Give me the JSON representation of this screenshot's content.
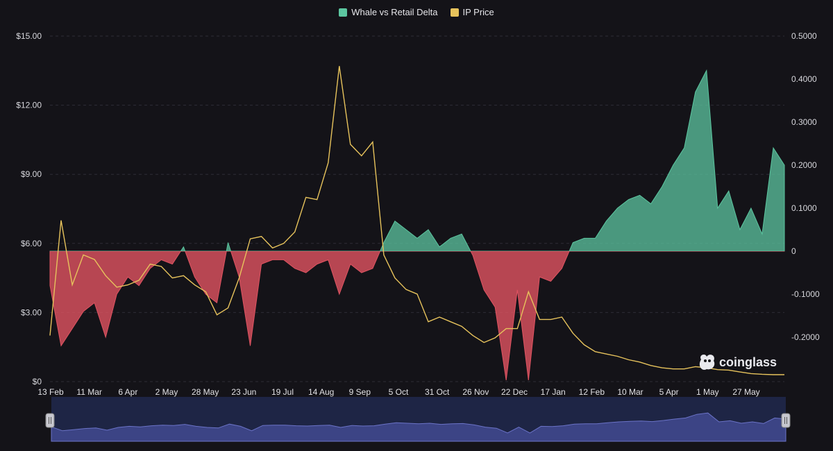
{
  "legend": {
    "delta_label": "Whale vs Retail Delta",
    "price_label": "IP Price"
  },
  "colors": {
    "positive": "#5cc6a0",
    "negative": "#e05462",
    "price": "#e7c35c",
    "background": "#141318",
    "navigator": "#6b73c7"
  },
  "watermark": "coinglass",
  "chart_data": {
    "type": "area",
    "title": "",
    "x_ticks": [
      "13 Feb",
      "11 Mar",
      "6 Apr",
      "2 May",
      "28 May",
      "23 Jun",
      "19 Jul",
      "14 Aug",
      "9 Sep",
      "5 Oct",
      "31 Oct",
      "26 Nov",
      "22 Dec",
      "17 Jan",
      "12 Feb",
      "10 Mar",
      "5 Apr",
      "1 May",
      "27 May"
    ],
    "y_left": {
      "min": 0,
      "max": 15,
      "ticks": [
        "$0",
        "$3.00",
        "$6.00",
        "$9.00",
        "$12.00",
        "$15.00"
      ]
    },
    "y_right": {
      "min": -0.3,
      "max": 0.5,
      "ticks": [
        "0.5000",
        "0.4000",
        "0.3000",
        "0.2000",
        "0.1000",
        "0",
        "-0.1000",
        "-0.2000"
      ]
    },
    "grid": true,
    "legend_position": "top-center",
    "x": [
      "13 Feb",
      "24 Feb",
      "4 Mar",
      "11 Mar",
      "20 Mar",
      "29 Mar",
      "6 Apr",
      "15 Apr",
      "24 Apr",
      "2 May",
      "11 May",
      "20 May",
      "28 May",
      "6 Jun",
      "15 Jun",
      "23 Jun",
      "2 Jul",
      "10 Jul",
      "19 Jul",
      "28 Jul",
      "5 Aug",
      "14 Aug",
      "23 Aug",
      "1 Sep",
      "9 Sep",
      "14 Sep",
      "18 Sep",
      "22 Sep",
      "27 Sep",
      "1 Oct",
      "5 Oct",
      "14 Oct",
      "22 Oct",
      "31 Oct",
      "9 Nov",
      "17 Nov",
      "26 Nov",
      "5 Dec",
      "13 Dec",
      "22 Dec",
      "26 Dec",
      "31 Dec",
      "4 Jan",
      "8 Jan",
      "12 Jan",
      "17 Jan",
      "21 Jan",
      "26 Jan",
      "3 Feb",
      "12 Feb",
      "21 Feb",
      "1 Mar",
      "10 Mar",
      "19 Mar",
      "27 Mar",
      "5 Apr",
      "14 Apr",
      "23 Apr",
      "27 Apr",
      "1 May",
      "5 May",
      "10 May",
      "19 May",
      "27 May",
      "5 Jun",
      "14 Jun",
      "20 Jun"
    ],
    "series": [
      {
        "name": "Whale vs Retail Delta",
        "axis": "right",
        "values": [
          -0.08,
          -0.22,
          -0.18,
          -0.14,
          -0.12,
          -0.2,
          -0.1,
          -0.06,
          -0.08,
          -0.04,
          -0.02,
          -0.03,
          0.01,
          -0.06,
          -0.1,
          -0.12,
          0.02,
          -0.06,
          -0.22,
          -0.03,
          -0.02,
          -0.02,
          -0.04,
          -0.05,
          -0.03,
          -0.02,
          -0.1,
          -0.03,
          -0.05,
          -0.04,
          0.02,
          0.07,
          0.05,
          0.03,
          0.05,
          0.01,
          0.03,
          0.04,
          -0.01,
          -0.09,
          -0.13,
          -0.3,
          -0.09,
          -0.3,
          -0.06,
          -0.07,
          -0.04,
          0.02,
          0.03,
          0.03,
          0.07,
          0.1,
          0.12,
          0.13,
          0.11,
          0.15,
          0.2,
          0.24,
          0.37,
          0.42,
          0.1,
          0.14,
          0.05,
          0.1,
          0.04,
          0.24,
          0.2
        ]
      },
      {
        "name": "IP Price",
        "axis": "left",
        "values": [
          2.0,
          7.0,
          4.2,
          5.5,
          5.3,
          4.6,
          4.1,
          4.2,
          4.4,
          5.1,
          5.0,
          4.5,
          4.6,
          4.2,
          3.9,
          2.9,
          3.2,
          4.5,
          6.2,
          6.3,
          5.8,
          6.0,
          6.5,
          8.0,
          7.9,
          9.5,
          13.7,
          10.3,
          9.8,
          10.4,
          5.5,
          4.5,
          4.0,
          3.8,
          2.6,
          2.8,
          2.6,
          2.4,
          2.0,
          1.7,
          1.9,
          2.3,
          2.3,
          3.9,
          2.7,
          2.7,
          2.8,
          2.1,
          1.6,
          1.3,
          1.2,
          1.1,
          0.95,
          0.85,
          0.7,
          0.6,
          0.55,
          0.55,
          0.65,
          0.6,
          0.52,
          0.5,
          0.42,
          0.35,
          0.32,
          0.3,
          0.3
        ]
      }
    ]
  }
}
